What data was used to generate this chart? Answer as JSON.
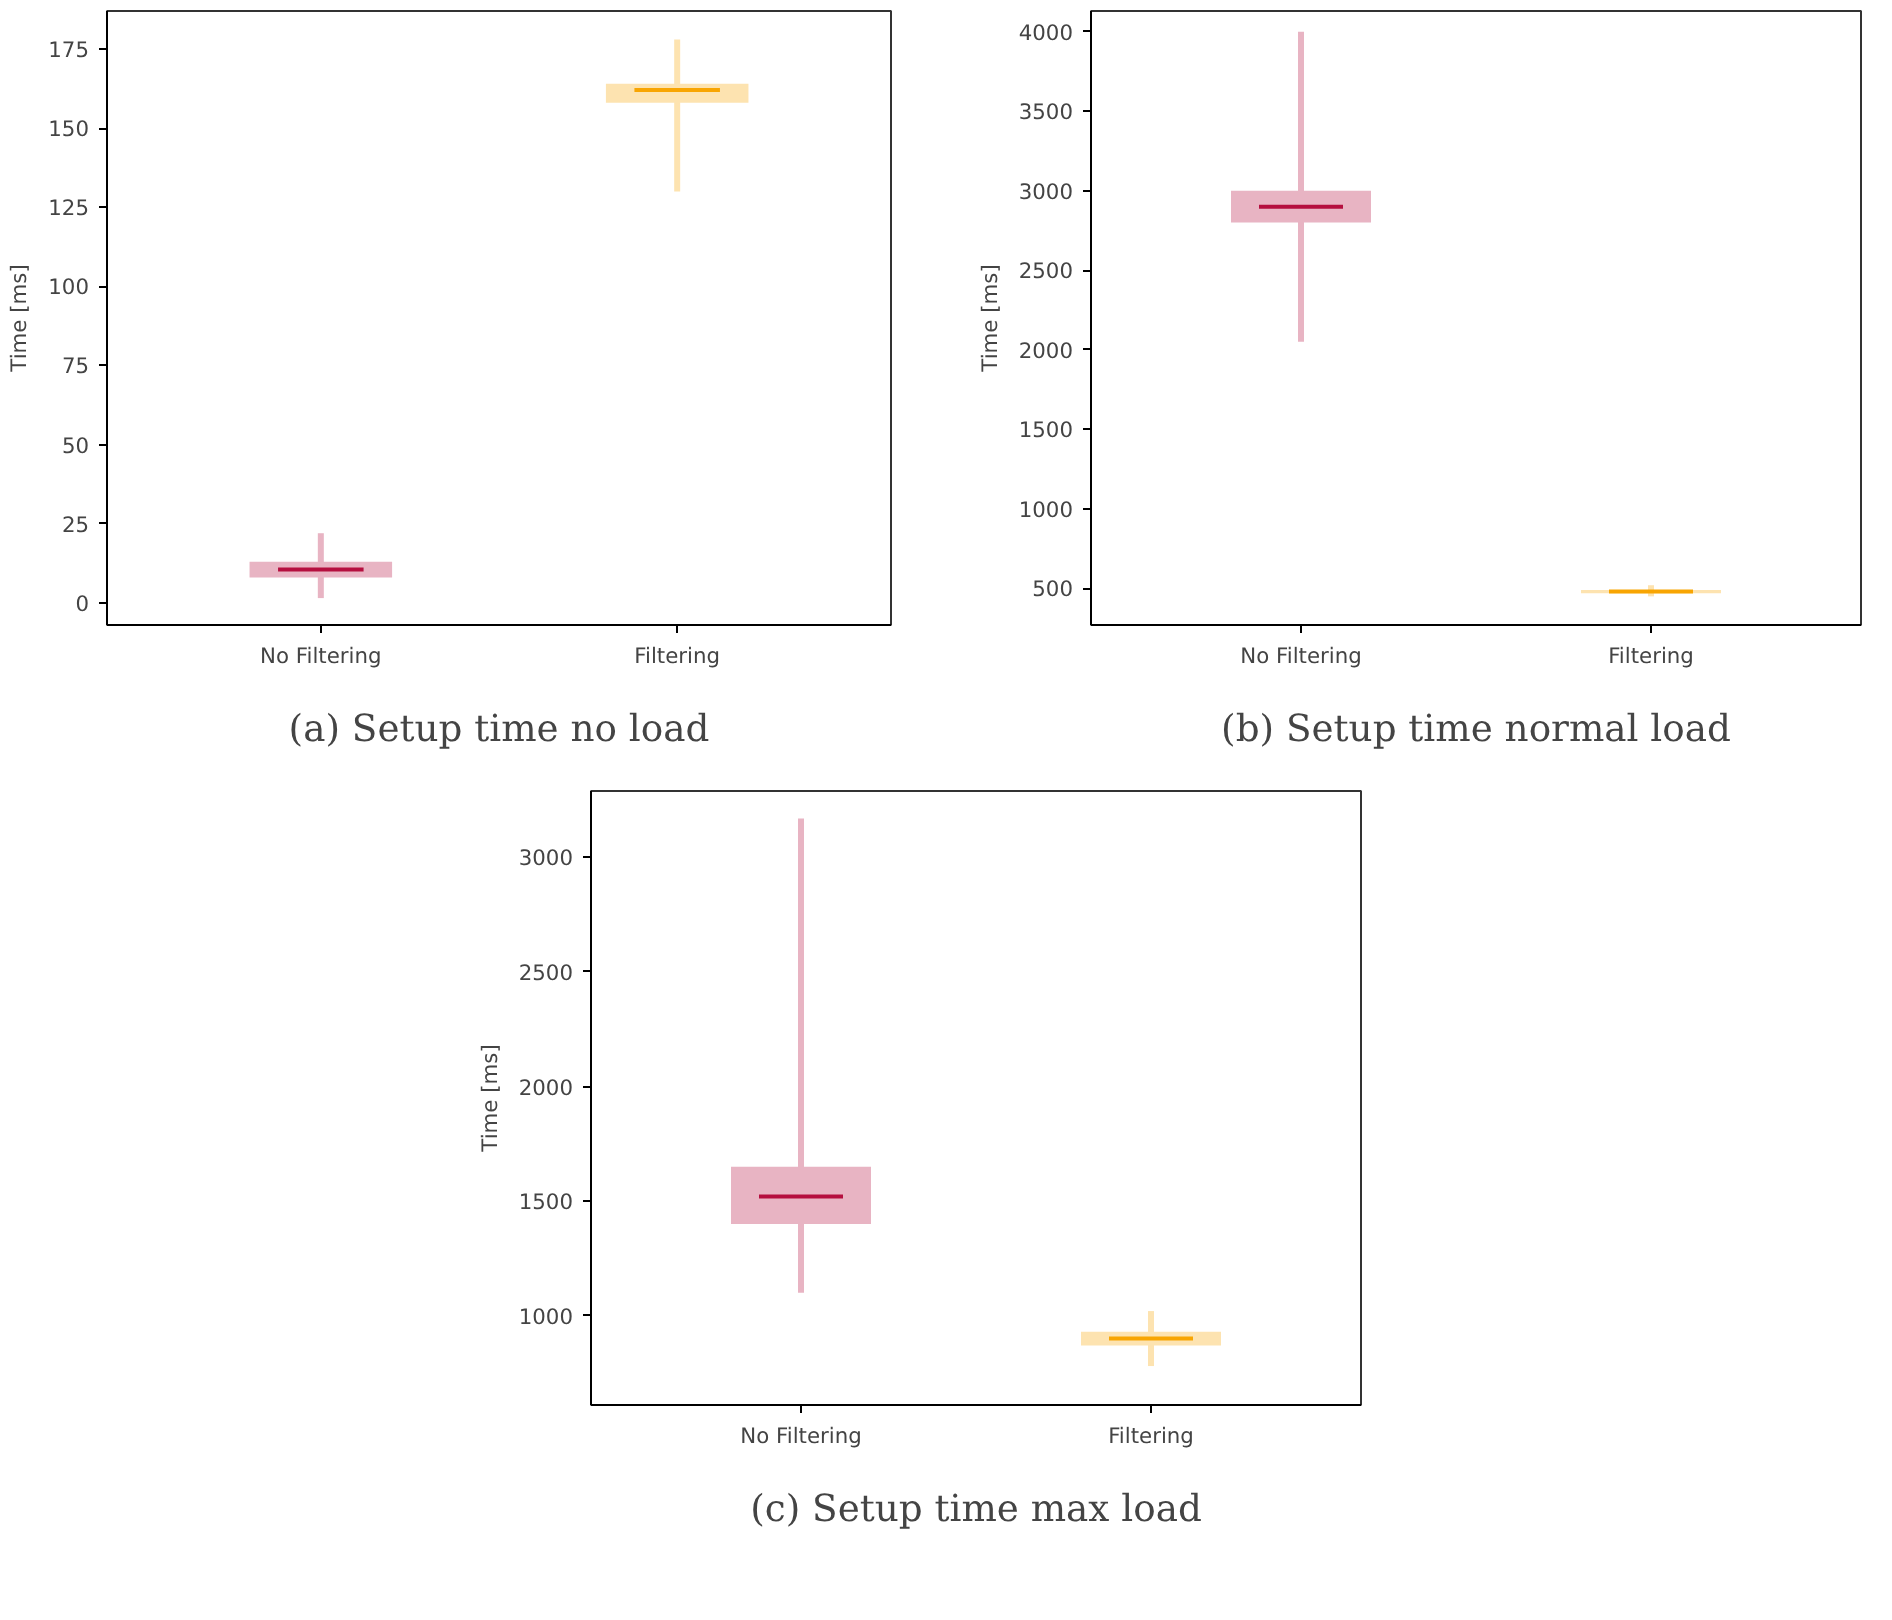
{
  "chart_data": [
    {
      "type": "box",
      "title": "(a) Setup time no load",
      "ylabel": "Time [ms]",
      "categories": [
        "No Filtering",
        "Filtering"
      ],
      "colors": [
        "#e8b4c3",
        "#fde3b0"
      ],
      "boxes": [
        {
          "low": 1.5,
          "q1": 8,
          "median": 10.5,
          "q3": 13,
          "high": 22
        },
        {
          "low": 130,
          "q1": 158,
          "median": 162,
          "q3": 164,
          "high": 178
        }
      ],
      "ylim": [
        -7,
        187
      ],
      "yticks": [
        0,
        25,
        50,
        75,
        100,
        125,
        150,
        175
      ],
      "grid": false
    },
    {
      "type": "box",
      "title": "(b) Setup time normal load",
      "ylabel": "Time [ms]",
      "categories": [
        "No Filtering",
        "Filtering"
      ],
      "colors": [
        "#e8b4c3",
        "#fde3b0"
      ],
      "boxes": [
        {
          "low": 2050,
          "q1": 2800,
          "median": 2900,
          "q3": 3000,
          "high": 4000
        },
        {
          "low": 450,
          "q1": 470,
          "median": 480,
          "q3": 490,
          "high": 520
        }
      ],
      "ylim": [
        270,
        4130
      ],
      "yticks": [
        500,
        1000,
        1500,
        2000,
        2500,
        3000,
        3500,
        4000
      ],
      "grid": false
    },
    {
      "type": "box",
      "title": "(c) Setup time max load",
      "ylabel": "Time [ms]",
      "categories": [
        "No Filtering",
        "Filtering"
      ],
      "colors": [
        "#e8b4c3",
        "#fde3b0"
      ],
      "boxes": [
        {
          "low": 1100,
          "q1": 1400,
          "median": 1520,
          "q3": 1650,
          "high": 3170
        },
        {
          "low": 780,
          "q1": 870,
          "median": 900,
          "q3": 930,
          "high": 1020
        }
      ],
      "ylim": [
        610,
        3290
      ],
      "yticks": [
        1000,
        1500,
        2000,
        2500,
        3000
      ],
      "grid": false
    }
  ]
}
